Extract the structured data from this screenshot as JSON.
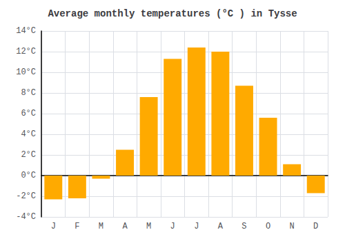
{
  "chart_data": {
    "type": "bar",
    "title": "Average monthly temperatures (°C ) in Tysse",
    "categories": [
      "J",
      "F",
      "M",
      "A",
      "M",
      "J",
      "J",
      "A",
      "S",
      "O",
      "N",
      "D"
    ],
    "values": [
      -2.3,
      -2.2,
      -0.3,
      2.5,
      7.6,
      11.3,
      12.4,
      12.0,
      8.7,
      5.6,
      1.1,
      -1.7
    ],
    "color": "#FFAA00",
    "ylim": [
      -4,
      14
    ],
    "yticks": [
      {
        "value": -4,
        "label": "-4°C"
      },
      {
        "value": -2,
        "label": "-2°C"
      },
      {
        "value": 0,
        "label": "0°C"
      },
      {
        "value": 2,
        "label": "2°C"
      },
      {
        "value": 4,
        "label": "4°C"
      },
      {
        "value": 6,
        "label": "6°C"
      },
      {
        "value": 8,
        "label": "8°C"
      },
      {
        "value": 10,
        "label": "10°C"
      },
      {
        "value": 12,
        "label": "12°C"
      },
      {
        "value": 14,
        "label": "14°C"
      }
    ],
    "grid": true
  }
}
